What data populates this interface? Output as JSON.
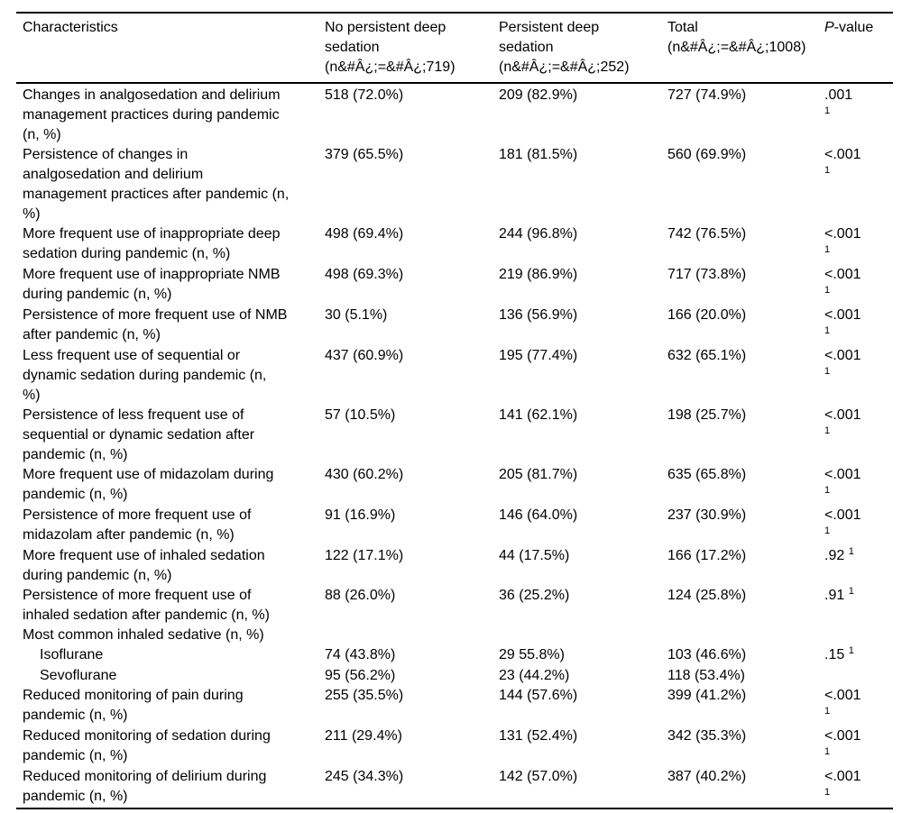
{
  "table": {
    "columns": [
      {
        "label": "Characteristics"
      },
      {
        "label": "No persistent deep\nsedation\n(n&#Â¿;=&#Â¿;719)"
      },
      {
        "label": "Persistent deep\nsedation\n(n&#Â¿;=&#Â¿;252)"
      },
      {
        "label": "Total\n(n&#Â¿;=&#Â¿;1008)"
      },
      {
        "label_italic": "P",
        "label_rest": "-value"
      }
    ],
    "rows": [
      {
        "label": "Changes in analgosedation and delirium\nmanagement practices during pandemic\n(n, %)",
        "indent": false,
        "values": [
          "518 (72.0%)",
          "209 (82.9%)",
          "727 (74.9%)"
        ],
        "p": {
          "value": ".001",
          "sup": "1",
          "wrap": true
        }
      },
      {
        "label": "Persistence of changes in\nanalgosedation and delirium\nmanagement practices after pandemic (n,\n%)",
        "indent": false,
        "values": [
          "379 (65.5%)",
          "181 (81.5%)",
          "560 (69.9%)"
        ],
        "p": {
          "value": "<.001",
          "sup": "1",
          "wrap": true
        }
      },
      {
        "label": "More frequent use of inappropriate deep\nsedation during pandemic (n, %)",
        "indent": false,
        "values": [
          "498 (69.4%)",
          "244 (96.8%)",
          "742 (76.5%)"
        ],
        "p": {
          "value": "<.001",
          "sup": "1",
          "wrap": true
        }
      },
      {
        "label": "More frequent use of inappropriate NMB\nduring pandemic (n, %)",
        "indent": false,
        "values": [
          "498 (69.3%)",
          "219 (86.9%)",
          "717 (73.8%)"
        ],
        "p": {
          "value": "<.001",
          "sup": "1",
          "wrap": true
        }
      },
      {
        "label": "Persistence of more frequent use of NMB\nafter pandemic (n, %)",
        "indent": false,
        "values": [
          "30 (5.1%)",
          "136 (56.9%)",
          "166 (20.0%)"
        ],
        "p": {
          "value": "<.001",
          "sup": "1",
          "wrap": true
        }
      },
      {
        "label": "Less frequent use of sequential or\ndynamic sedation during pandemic (n,\n%)",
        "indent": false,
        "values": [
          "437 (60.9%)",
          "195 (77.4%)",
          "632 (65.1%)"
        ],
        "p": {
          "value": "<.001",
          "sup": "1",
          "wrap": true
        }
      },
      {
        "label": "Persistence of less frequent use of\nsequential or dynamic sedation after\npandemic (n, %)",
        "indent": false,
        "values": [
          "57 (10.5%)",
          "141 (62.1%)",
          "198 (25.7%)"
        ],
        "p": {
          "value": "<.001",
          "sup": "1",
          "wrap": true
        }
      },
      {
        "label": "More frequent use of midazolam during\npandemic (n, %)",
        "indent": false,
        "values": [
          "430 (60.2%)",
          "205 (81.7%)",
          "635 (65.8%)"
        ],
        "p": {
          "value": "<.001",
          "sup": "1",
          "wrap": true
        }
      },
      {
        "label": "Persistence of more frequent use of\nmidazolam after pandemic (n, %)",
        "indent": false,
        "values": [
          "91 (16.9%)",
          "146 (64.0%)",
          "237 (30.9%)"
        ],
        "p": {
          "value": "<.001",
          "sup": "1",
          "wrap": true
        }
      },
      {
        "label": "More frequent use of inhaled sedation\nduring pandemic (n, %)",
        "indent": false,
        "values": [
          "122 (17.1%)",
          "44 (17.5%)",
          "166 (17.2%)"
        ],
        "p": {
          "value": ".92",
          "sup": "1",
          "wrap": false
        }
      },
      {
        "label": "Persistence of more frequent use of\ninhaled sedation after pandemic (n, %)",
        "indent": false,
        "values": [
          "88 (26.0%)",
          "36 (25.2%)",
          "124 (25.8%)"
        ],
        "p": {
          "value": ".91",
          "sup": "1",
          "wrap": false
        }
      },
      {
        "label": "Most common inhaled sedative (n, %)",
        "indent": false,
        "values": [
          "",
          "",
          ""
        ],
        "p": null
      },
      {
        "label": "Isoflurane",
        "indent": true,
        "values": [
          "74 (43.8%)",
          "29 55.8%)",
          "103 (46.6%)"
        ],
        "p": {
          "value": ".15",
          "sup": "1",
          "wrap": false
        }
      },
      {
        "label": "Sevoflurane",
        "indent": true,
        "values": [
          "95 (56.2%)",
          "23 (44.2%)",
          "118 (53.4%)"
        ],
        "p": null
      },
      {
        "label": "Reduced monitoring of pain during\npandemic (n, %)",
        "indent": false,
        "values": [
          "255 (35.5%)",
          "144 (57.6%)",
          "399 (41.2%)"
        ],
        "p": {
          "value": "<.001",
          "sup": "1",
          "wrap": true
        }
      },
      {
        "label": "Reduced monitoring of sedation during\npandemic (n, %)",
        "indent": false,
        "values": [
          "211 (29.4%)",
          "131 (52.4%)",
          "342 (35.3%)"
        ],
        "p": {
          "value": "<.001",
          "sup": "1",
          "wrap": true
        }
      },
      {
        "label": "Reduced monitoring of delirium during\npandemic (n, %)",
        "indent": false,
        "values": [
          "245 (34.3%)",
          "142 (57.0%)",
          "387 (40.2%)"
        ],
        "p": {
          "value": "<.001",
          "sup": "1",
          "wrap": true
        }
      }
    ]
  },
  "colors": {
    "background": "#ffffff",
    "text": "#000000",
    "rule": "#000000"
  }
}
